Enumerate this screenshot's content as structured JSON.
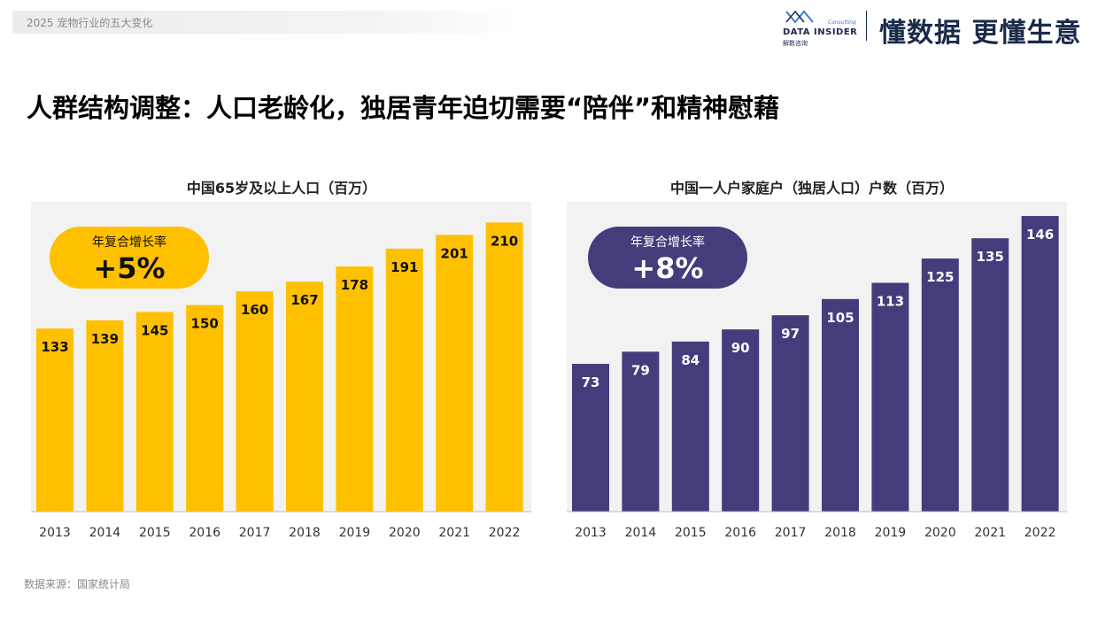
{
  "header": {
    "subtitle": "2025 宠物行业的五大变化"
  },
  "brand": {
    "name": "DATA INSIDER",
    "name_cn": "解数咨询",
    "tag": "Consulting",
    "slogan": "懂数据 更懂生意"
  },
  "page": {
    "title": "人群结构调整：人口老龄化，独居青年迫切需要“陪伴”和精神慰藉"
  },
  "footer": {
    "source": "数据来源：国家统计局"
  },
  "colors": {
    "bar_left": "#FFC000",
    "bar_right": "#433D7C",
    "panel_bg": "#F2F2F2",
    "header_text": "#8A8A8A"
  },
  "chart_data": [
    {
      "type": "bar",
      "title": "中国65岁及以上人口（百万）",
      "categories": [
        "2013",
        "2014",
        "2015",
        "2016",
        "2017",
        "2018",
        "2019",
        "2020",
        "2021",
        "2022"
      ],
      "values": [
        133,
        139,
        145,
        150,
        160,
        167,
        178,
        191,
        201,
        210
      ],
      "ylim": [
        0,
        225
      ],
      "grid": false,
      "badge": {
        "label": "年复合增长率",
        "value": "+5%"
      }
    },
    {
      "type": "bar",
      "title": "中国一人户家庭户（独居人口）户数（百万）",
      "categories": [
        "2013",
        "2014",
        "2015",
        "2016",
        "2017",
        "2018",
        "2019",
        "2020",
        "2021",
        "2022"
      ],
      "values": [
        73,
        79,
        84,
        90,
        97,
        105,
        113,
        125,
        135,
        146
      ],
      "ylim": [
        0,
        153
      ],
      "grid": false,
      "badge": {
        "label": "年复合增长率",
        "value": "+8%"
      }
    }
  ]
}
